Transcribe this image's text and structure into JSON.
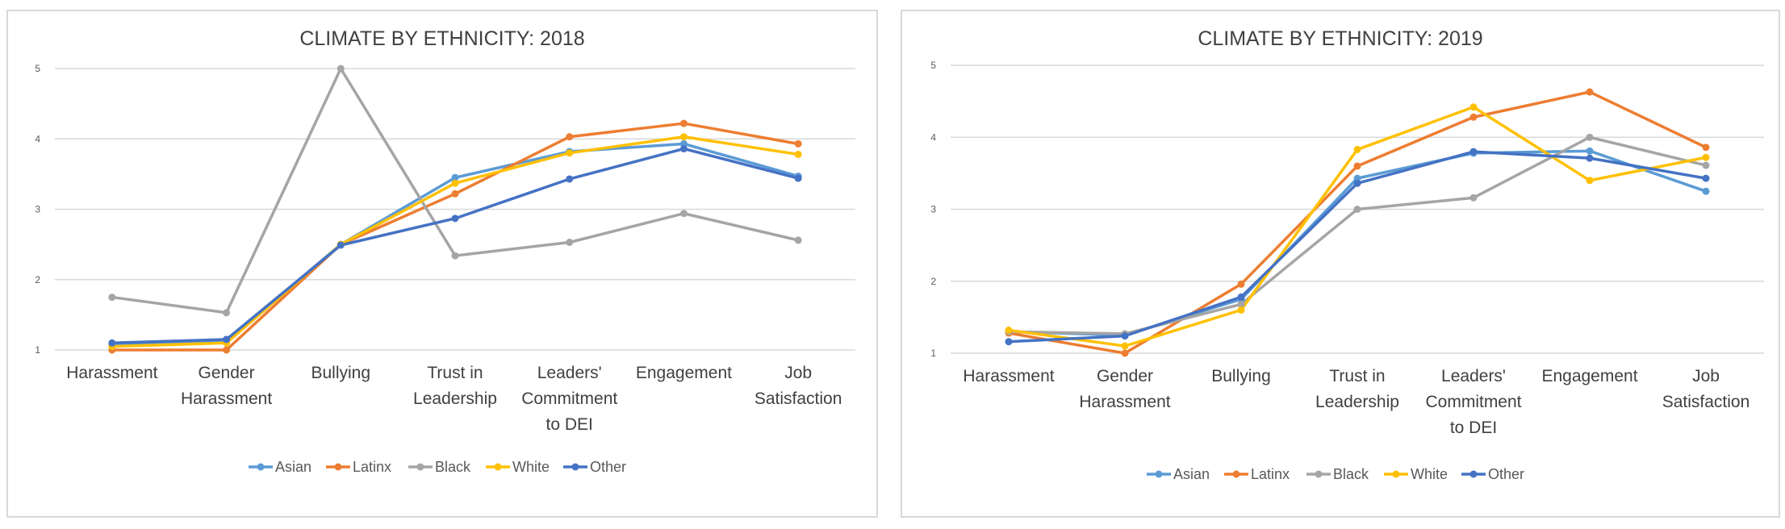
{
  "chart_data": [
    {
      "type": "line",
      "title": "CLIMATE BY ETHNICITY: 2018",
      "categories": [
        "Harassment",
        "Gender Harassment",
        "Bullying",
        "Trust in Leadership",
        "Leaders' Commitment to DEI",
        "Engagement",
        "Job Satisfaction"
      ],
      "category_lines": [
        [
          "Harassment"
        ],
        [
          "Gender",
          "Harassment"
        ],
        [
          "Bullying"
        ],
        [
          "Trust in",
          "Leadership"
        ],
        [
          "Leaders'",
          "Commitment",
          "to DEI"
        ],
        [
          "Engagement"
        ],
        [
          "Job",
          "Satisfaction"
        ]
      ],
      "ylim": [
        1,
        5
      ],
      "yticks": [
        "1",
        "2",
        "3",
        "4",
        "5"
      ],
      "grid": true,
      "legend": "bottom",
      "series": [
        {
          "name": "Asian",
          "color": "#5B9BD5",
          "values": [
            1.08,
            1.12,
            2.5,
            3.45,
            3.82,
            3.93,
            3.47
          ]
        },
        {
          "name": "Latinx",
          "color": "#ED7D31",
          "values": [
            1.0,
            1.0,
            2.5,
            3.22,
            4.03,
            4.22,
            3.93
          ]
        },
        {
          "name": "Black",
          "color": "#A5A5A5",
          "values": [
            1.75,
            1.53,
            5.0,
            2.34,
            2.53,
            2.94,
            2.56
          ]
        },
        {
          "name": "White",
          "color": "#FFC000",
          "values": [
            1.05,
            1.1,
            2.5,
            3.37,
            3.8,
            4.03,
            3.78
          ]
        },
        {
          "name": "Other",
          "color": "#4472C4",
          "values": [
            1.1,
            1.15,
            2.49,
            2.87,
            3.43,
            3.86,
            3.44
          ]
        }
      ]
    },
    {
      "type": "line",
      "title": "CLIMATE BY ETHNICITY: 2019",
      "categories": [
        "Harassment",
        "Gender Harassment",
        "Bullying",
        "Trust in Leadership",
        "Leaders' Commitment to DEI",
        "Engagement",
        "Job Satisfaction"
      ],
      "category_lines": [
        [
          "Harassment"
        ],
        [
          "Gender",
          "Harassment"
        ],
        [
          "Bullying"
        ],
        [
          "Trust in",
          "Leadership"
        ],
        [
          "Leaders'",
          "Commitment",
          "to DEI"
        ],
        [
          "Engagement"
        ],
        [
          "Job",
          "Satisfaction"
        ]
      ],
      "ylim": [
        1,
        5
      ],
      "yticks": [
        "1",
        "2",
        "3",
        "4",
        "5"
      ],
      "grid": true,
      "legend": "bottom",
      "series": [
        {
          "name": "Asian",
          "color": "#5B9BD5",
          "values": [
            1.3,
            1.25,
            1.75,
            3.43,
            3.78,
            3.81,
            3.25
          ]
        },
        {
          "name": "Latinx",
          "color": "#ED7D31",
          "values": [
            1.28,
            1.0,
            1.96,
            3.6,
            4.28,
            4.63,
            3.86
          ]
        },
        {
          "name": "Black",
          "color": "#A5A5A5",
          "values": [
            1.3,
            1.27,
            1.68,
            3.0,
            3.16,
            4.0,
            3.61
          ]
        },
        {
          "name": "White",
          "color": "#FFC000",
          "values": [
            1.32,
            1.1,
            1.6,
            3.83,
            4.42,
            3.4,
            3.72
          ]
        },
        {
          "name": "Other",
          "color": "#4472C4",
          "values": [
            1.16,
            1.24,
            1.78,
            3.36,
            3.8,
            3.71,
            3.43
          ]
        }
      ]
    }
  ]
}
